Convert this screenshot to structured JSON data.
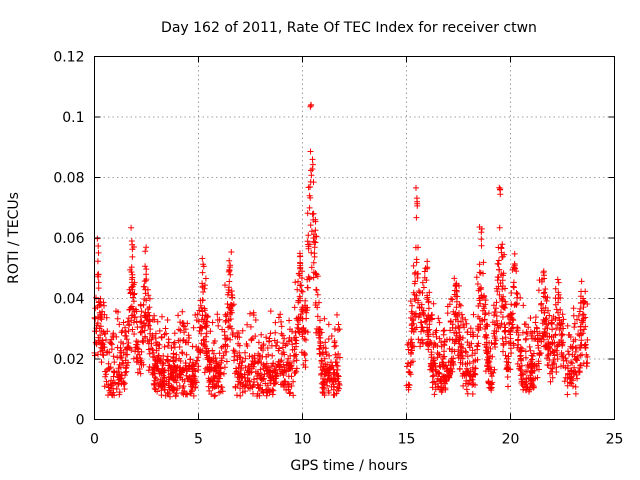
{
  "chart_data": {
    "type": "scatter",
    "title": "Day 162 of 2011, Rate Of TEC Index for receiver ctwn",
    "xlabel": "GPS time / hours",
    "ylabel": "ROTI / TECUs",
    "xlim": [
      0,
      25
    ],
    "ylim": [
      0,
      0.12
    ],
    "xticks": [
      "0",
      "5",
      "10",
      "15",
      "20",
      "25"
    ],
    "yticks": [
      "0",
      "0.02",
      "0.04",
      "0.06",
      "0.08",
      "0.1",
      "0.12"
    ],
    "grid": true,
    "marker": "plus",
    "color": "#ff0000",
    "data_gap_hours": [
      11.8,
      14.9
    ],
    "series": [
      {
        "name": "ROTI",
        "segments": [
          {
            "x_range": [
              0.0,
              11.8
            ],
            "baseline": 0.012,
            "spread": 0.01,
            "peaks": [
              {
                "x": 0.2,
                "y": 0.048
              },
              {
                "x": 1.8,
                "y": 0.059
              },
              {
                "x": 2.5,
                "y": 0.048
              },
              {
                "x": 5.2,
                "y": 0.045
              },
              {
                "x": 6.5,
                "y": 0.051
              },
              {
                "x": 9.9,
                "y": 0.054
              },
              {
                "x": 10.4,
                "y": 0.104
              },
              {
                "x": 10.5,
                "y": 0.086
              },
              {
                "x": 10.6,
                "y": 0.066
              }
            ]
          },
          {
            "x_range": [
              15.0,
              23.7
            ],
            "baseline": 0.013,
            "spread": 0.011,
            "peaks": [
              {
                "x": 15.5,
                "y": 0.072
              },
              {
                "x": 15.9,
                "y": 0.05
              },
              {
                "x": 17.4,
                "y": 0.045
              },
              {
                "x": 18.6,
                "y": 0.063
              },
              {
                "x": 19.5,
                "y": 0.076
              },
              {
                "x": 20.2,
                "y": 0.051
              },
              {
                "x": 21.6,
                "y": 0.049
              },
              {
                "x": 22.3,
                "y": 0.042
              },
              {
                "x": 23.5,
                "y": 0.04
              }
            ]
          }
        ]
      }
    ]
  }
}
